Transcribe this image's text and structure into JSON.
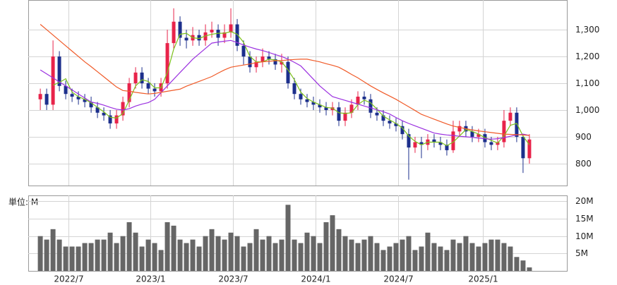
{
  "chart_data": {
    "type": "candlestick",
    "xlim": [
      -1.9,
      82.9
    ],
    "xticks": [
      {
        "value": 4.4,
        "label": "2022/7"
      },
      {
        "value": 17.3,
        "label": "2023/1"
      },
      {
        "value": 30.3,
        "label": "2023/7"
      },
      {
        "value": 43.3,
        "label": "2024/1"
      },
      {
        "value": 56.3,
        "label": "2024/7"
      },
      {
        "value": 69.7,
        "label": "2025/1"
      }
    ],
    "ylim": [
      718,
      1411
    ],
    "yticks": [
      {
        "value": 1300,
        "label": "1,300"
      },
      {
        "value": 1200,
        "label": "1,200"
      },
      {
        "value": 1100,
        "label": "1,100"
      },
      {
        "value": 1000,
        "label": "1,000"
      },
      900,
      800
    ],
    "grid": true,
    "up_color": "#e8234a",
    "down_color": "#1c2f8c",
    "open": [
      1040,
      1060,
      1020,
      1200,
      1090,
      1060,
      1050,
      1040,
      1030,
      1010,
      990,
      980,
      950,
      980,
      1030,
      1100,
      1140,
      1100,
      1080,
      1070,
      1100,
      1250,
      1330,
      1270,
      1260,
      1280,
      1260,
      1290,
      1300,
      1270,
      1290,
      1320,
      1240,
      1200,
      1160,
      1180,
      1200,
      1190,
      1170,
      1180,
      1100,
      1060,
      1040,
      1030,
      1020,
      1010,
      1000,
      1010,
      960,
      990,
      1020,
      1050,
      1040,
      990,
      980,
      960,
      950,
      940,
      910,
      860,
      880,
      870,
      890,
      880,
      870,
      850,
      920,
      940,
      920,
      900,
      910,
      880,
      870,
      880,
      960,
      990,
      900,
      820
    ],
    "high": [
      1080,
      1080,
      1260,
      1220,
      1110,
      1080,
      1070,
      1060,
      1050,
      1030,
      1010,
      1000,
      1000,
      1050,
      1120,
      1160,
      1160,
      1120,
      1100,
      1120,
      1300,
      1380,
      1350,
      1300,
      1310,
      1300,
      1320,
      1330,
      1320,
      1320,
      1380,
      1340,
      1260,
      1220,
      1200,
      1230,
      1220,
      1210,
      1210,
      1200,
      1120,
      1080,
      1060,
      1050,
      1040,
      1030,
      1030,
      1030,
      1010,
      1040,
      1070,
      1070,
      1060,
      1010,
      1000,
      980,
      970,
      960,
      930,
      900,
      900,
      910,
      910,
      900,
      890,
      960,
      960,
      960,
      940,
      930,
      930,
      900,
      900,
      1000,
      1010,
      1010,
      910,
      910
    ],
    "low": [
      1000,
      1000,
      1000,
      1070,
      1040,
      1030,
      1020,
      1010,
      990,
      970,
      960,
      930,
      930,
      960,
      1010,
      1080,
      1080,
      1060,
      1050,
      1050,
      1080,
      1230,
      1240,
      1230,
      1240,
      1240,
      1240,
      1270,
      1240,
      1250,
      1270,
      1220,
      1170,
      1140,
      1140,
      1160,
      1170,
      1150,
      1140,
      1080,
      1040,
      1020,
      1010,
      1000,
      990,
      980,
      980,
      940,
      940,
      970,
      1000,
      1020,
      970,
      960,
      940,
      930,
      920,
      890,
      740,
      840,
      820,
      850,
      860,
      850,
      830,
      840,
      900,
      900,
      880,
      880,
      860,
      850,
      850,
      860,
      940,
      880,
      765,
      800
    ],
    "close": [
      1060,
      1020,
      1200,
      1090,
      1060,
      1050,
      1040,
      1030,
      1010,
      990,
      980,
      950,
      980,
      1030,
      1100,
      1140,
      1100,
      1080,
      1070,
      1100,
      1250,
      1330,
      1270,
      1260,
      1280,
      1260,
      1290,
      1300,
      1270,
      1290,
      1320,
      1240,
      1200,
      1160,
      1180,
      1200,
      1190,
      1170,
      1180,
      1100,
      1060,
      1040,
      1030,
      1020,
      1010,
      1000,
      1010,
      960,
      990,
      1020,
      1050,
      1040,
      990,
      980,
      960,
      950,
      940,
      910,
      860,
      880,
      870,
      890,
      880,
      870,
      850,
      920,
      940,
      920,
      900,
      910,
      880,
      870,
      880,
      960,
      990,
      900,
      820,
      890
    ],
    "lines": [
      {
        "color": "#7cc11a",
        "values": [
          null,
          null,
          1093,
          1103,
          1117,
          1067,
          1050,
          1040,
          1027,
          1010,
          993,
          973,
          970,
          987,
          1037,
          1090,
          1113,
          1107,
          1083,
          1083,
          1140,
          1227,
          1283,
          1287,
          1270,
          1267,
          1277,
          1283,
          1287,
          1287,
          1293,
          1283,
          1253,
          1200,
          1180,
          1180,
          1190,
          1187,
          1180,
          1150,
          1113,
          1067,
          1043,
          1030,
          1020,
          1010,
          1007,
          990,
          987,
          990,
          1020,
          1037,
          1027,
          1003,
          977,
          963,
          950,
          933,
          903,
          883,
          870,
          880,
          880,
          880,
          867,
          880,
          903,
          927,
          920,
          910,
          897,
          887,
          877,
          903,
          943,
          950,
          903,
          870
        ]
      },
      {
        "color": "#9b30e0",
        "values": [
          1150,
          1135,
          1120,
          1105,
          1090,
          1075,
          1060,
          1045,
          1030,
          1025,
          1018,
          1010,
          1003,
          1000,
          1005,
          1015,
          1022,
          1028,
          1040,
          1065,
          1090,
          1115,
          1140,
          1165,
          1190,
          1210,
          1230,
          1250,
          1254,
          1257,
          1260,
          1252,
          1243,
          1235,
          1228,
          1222,
          1215,
          1207,
          1200,
          1190,
          1178,
          1165,
          1140,
          1115,
          1090,
          1070,
          1050,
          1043,
          1036,
          1029,
          1022,
          1015,
          1008,
          1001,
          994,
          985,
          972,
          960,
          950,
          941,
          932,
          923,
          914,
          910,
          907,
          905,
          902,
          900,
          898,
          895,
          893,
          891,
          893,
          897,
          902,
          907,
          910,
          905
        ]
      },
      {
        "color": "#f05a28",
        "values": [
          1320,
          1300,
          1280,
          1260,
          1240,
          1220,
          1200,
          1180,
          1162,
          1143,
          1124,
          1105,
          1086,
          1073,
          1070,
          1066,
          1063,
          1060,
          1062,
          1066,
          1070,
          1074,
          1078,
          1089,
          1098,
          1107,
          1116,
          1125,
          1138,
          1150,
          1160,
          1164,
          1168,
          1172,
          1177,
          1180,
          1182,
          1184,
          1185,
          1187,
          1189,
          1190,
          1190,
          1185,
          1180,
          1173,
          1167,
          1160,
          1147,
          1133,
          1120,
          1105,
          1090,
          1077,
          1064,
          1052,
          1040,
          1026,
          1012,
          998,
          984,
          975,
          966,
          957,
          948,
          940,
          935,
          930,
          926,
          922,
          919,
          916,
          913,
          910,
          909,
          908,
          907,
          905
        ]
      }
    ],
    "volume": {
      "unit_label": "単位: M",
      "color": "#666666",
      "ylim": [
        0,
        21.7
      ],
      "yticks": [
        {
          "value": 20,
          "label": "20M"
        },
        {
          "value": 15,
          "label": "15M"
        },
        {
          "value": 10,
          "label": "10M"
        },
        {
          "value": 5,
          "label": "5M"
        }
      ],
      "values": [
        10,
        9,
        12,
        9,
        7,
        7,
        7,
        8,
        8,
        9,
        9,
        11,
        8,
        10,
        14,
        11,
        7,
        9,
        8,
        6,
        14,
        13,
        9,
        8,
        9,
        7,
        10,
        12,
        10,
        9,
        11,
        10,
        7,
        8,
        12,
        9,
        10,
        8,
        9,
        19,
        9,
        8,
        11,
        10,
        8,
        14,
        16,
        12,
        10,
        9,
        8,
        9,
        10,
        8,
        6,
        7,
        8,
        9,
        10,
        6,
        7,
        11,
        8,
        7,
        6,
        9,
        8,
        10,
        8,
        7,
        8,
        9,
        9,
        8,
        7,
        4,
        3,
        1
      ]
    }
  }
}
